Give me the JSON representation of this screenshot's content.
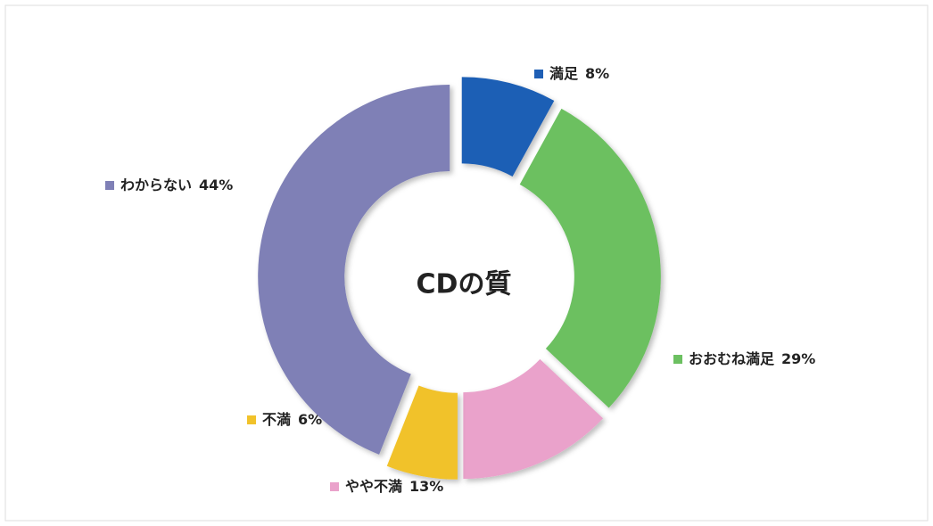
{
  "chart_data": {
    "type": "donut",
    "title": "CDの質",
    "categories": [
      "満足",
      "おおむね満足",
      "やや不満",
      "不満",
      "わからない"
    ],
    "values": [
      8,
      29,
      13,
      6,
      44
    ],
    "value_labels": [
      "8%",
      "29%",
      "13%",
      "6%",
      "44%"
    ],
    "colors": [
      "#1f5fb5",
      "#6cc061",
      "#eaa2cb",
      "#f1c22a",
      "#7f80b6"
    ]
  }
}
